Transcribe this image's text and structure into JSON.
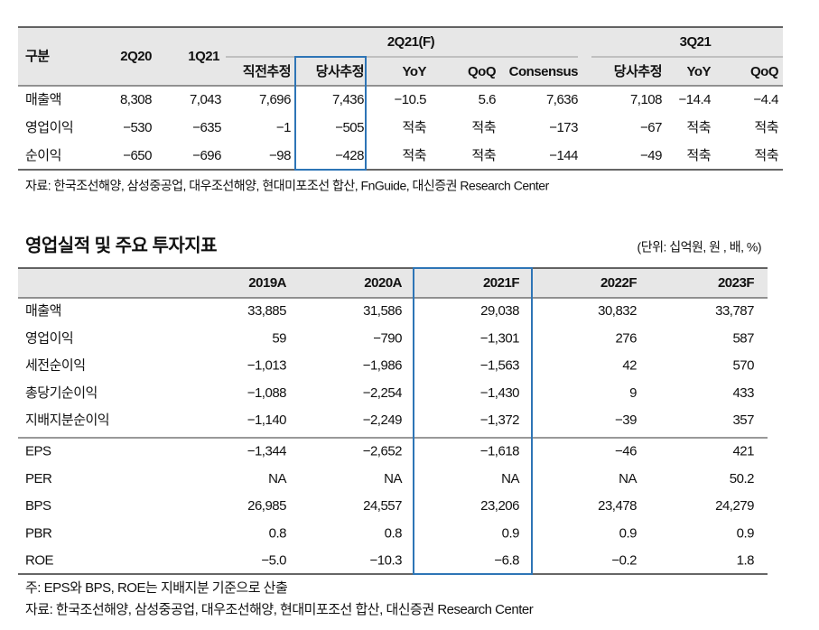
{
  "table1": {
    "header_row1": [
      "구분",
      "2Q20",
      "1Q21",
      "2Q21(F)",
      "3Q21"
    ],
    "header_row2": [
      "직전추정",
      "당사추정",
      "YoY",
      "QoQ",
      "Consensus",
      "당사추정",
      "YoY",
      "QoQ"
    ],
    "rows": [
      [
        "매출액",
        "8,308",
        "7,043",
        "7,696",
        "7,436",
        "−10.5",
        "5.6",
        "7,636",
        "7,108",
        "−14.4",
        "−4.4"
      ],
      [
        "영업이익",
        "−530",
        "−635",
        "−1",
        "−505",
        "적축",
        "적축",
        "−173",
        "−67",
        "적축",
        "적축"
      ],
      [
        "순이익",
        "−650",
        "−696",
        "−98",
        "−428",
        "적축",
        "적축",
        "−144",
        "−49",
        "적축",
        "적축"
      ]
    ]
  },
  "source1": "자료: 한국조선해양, 삼성중공업, 대우조선해양, 현대미포조선 합산, FnGuide, 대신증권 Research Center",
  "title": "영업실적 및 주요 투자지표",
  "unit": "(단위: 십억원, 원 , 배, %)",
  "table2": {
    "header": [
      "2019A",
      "2020A",
      "2021F",
      "2022F",
      "2023F"
    ],
    "rows": [
      [
        "매출액",
        "33,885",
        "31,586",
        "29,038",
        "30,832",
        "33,787"
      ],
      [
        "영업이익",
        "59",
        "−790",
        "−1,301",
        "276",
        "587"
      ],
      [
        "세전순이익",
        "−1,013",
        "−1,986",
        "−1,563",
        "42",
        "570"
      ],
      [
        "총당기순이익",
        "−1,088",
        "−2,254",
        "−1,430",
        "9",
        "433"
      ],
      [
        "지배지분순이익",
        "−1,140",
        "−2,249",
        "−1,372",
        "−39",
        "357"
      ],
      [
        "EPS",
        "−1,344",
        "−2,652",
        "−1,618",
        "−46",
        "421"
      ],
      [
        "PER",
        "NA",
        "NA",
        "NA",
        "NA",
        "50.2"
      ],
      [
        "BPS",
        "26,985",
        "24,557",
        "23,206",
        "23,478",
        "24,279"
      ],
      [
        "PBR",
        "0.8",
        "0.8",
        "0.9",
        "0.9",
        "0.9"
      ],
      [
        "ROE",
        "−5.0",
        "−10.3",
        "−6.8",
        "−0.2",
        "1.8"
      ]
    ]
  },
  "footnote": "주: EPS와 BPS, ROE는 지배지분 기준으로 산출",
  "source2": "자료: 한국조선해양, 삼성중공업, 대우조선해양, 현대미포조선 합산, 대신증권 Research Center"
}
